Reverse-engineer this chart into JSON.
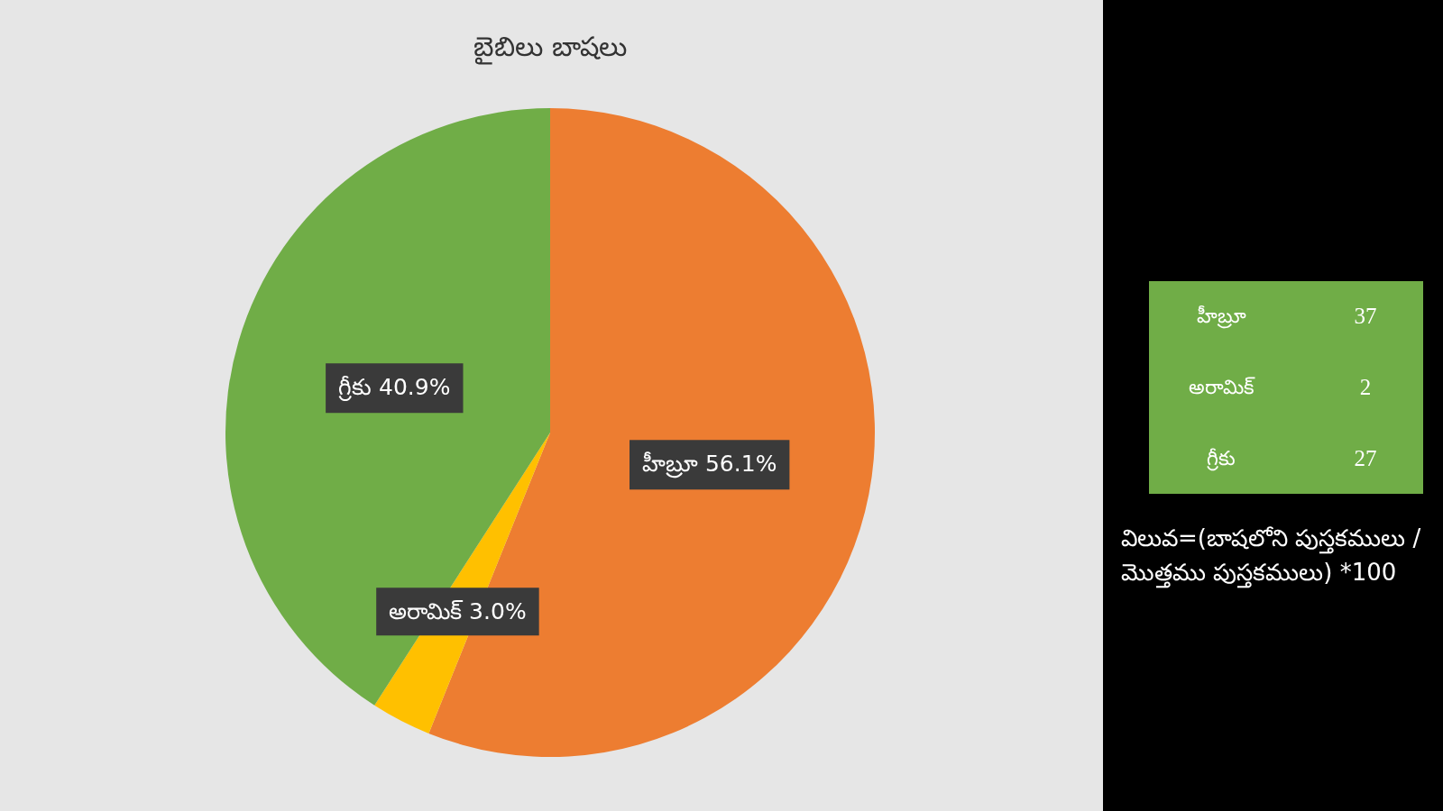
{
  "chart_data": [
    {
      "type": "pie",
      "title": "బైబిలు బాషలు",
      "categories": [
        "హీబ్రూ",
        "అరామిక్",
        "గ్రీకు"
      ],
      "values": [
        56.1,
        3.0,
        40.9
      ],
      "value_labels": [
        "56.1%",
        "3.0%",
        "40.9%"
      ],
      "colors": [
        "#ed7d31",
        "#ffc000",
        "#70ad47"
      ]
    },
    {
      "type": "other",
      "categories": [
        "హీబ్రూ",
        "అరామిక్",
        "గ్రీకు"
      ],
      "values": [
        37,
        2,
        27
      ],
      "data_labels": true,
      "color": "#70ad47",
      "annotations": [
        "విలువ=(బాషలోని పుస్తకములు / మొత్తము పుస్తకములు) *100"
      ]
    }
  ]
}
